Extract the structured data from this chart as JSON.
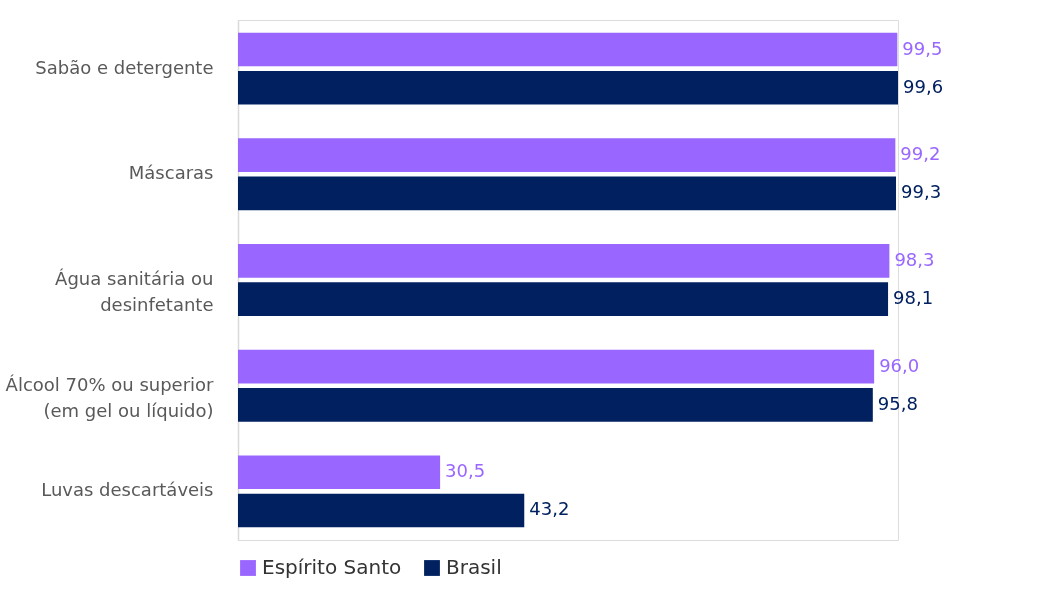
{
  "chart_data": {
    "type": "bar",
    "orientation": "horizontal",
    "categories": [
      "Sabão e detergente",
      "Máscaras",
      "Água sanitária ou\ndesinfetante",
      "Álcool 70% ou superior\n(em gel ou líquido)",
      "Luvas descartáveis"
    ],
    "series": [
      {
        "name": "Espírito Santo",
        "color": "#9966ff",
        "values": [
          99.5,
          99.2,
          98.3,
          96.0,
          30.5
        ],
        "value_labels": [
          "99,5",
          "99,2",
          "98,3",
          "96,0",
          "30,5"
        ]
      },
      {
        "name": "Brasil",
        "color": "#002060",
        "values": [
          99.6,
          99.3,
          98.1,
          95.8,
          43.2
        ],
        "value_labels": [
          "99,6",
          "99,3",
          "98,1",
          "95,8",
          "43,2"
        ]
      }
    ],
    "legend": "bottom",
    "grid": false
  }
}
